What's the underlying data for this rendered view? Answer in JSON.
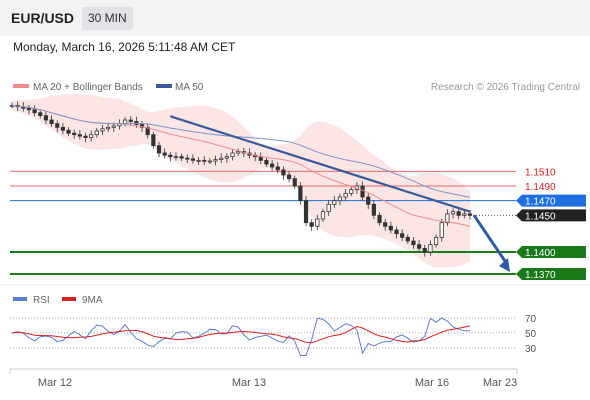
{
  "header": {
    "pair": "EUR/USD",
    "timeframe": "30 MIN",
    "date": "Monday, March 16, 2026 5:11:48 AM CET"
  },
  "legend": {
    "bollinger": "MA 20 + Bollinger Bands",
    "ma50": "MA 50",
    "rsi": "RSI",
    "rsi_ma": "9MA",
    "credit": "Research © 2026 Trading Central"
  },
  "colors": {
    "bollinger": "#f08c8c",
    "ma50": "#3b5a9a",
    "rsi": "#5b7fd0",
    "rsi_ma": "#d92020",
    "support": "#1a7a1a",
    "current": "#1f6fe0",
    "resistance": "#e86a6a",
    "candle": "#333333"
  },
  "chart_data": {
    "type": "candlestick",
    "price_range": [
      1.1355,
      1.1655
    ],
    "x_ticks": [
      "Mar 12",
      "Mar 13",
      "Mar 16",
      "Mar 23"
    ],
    "levels": [
      {
        "value": "1.1510",
        "kind": "resistance"
      },
      {
        "value": "1.1490",
        "kind": "resistance"
      },
      {
        "value": "1.1470",
        "kind": "pivot"
      },
      {
        "value": "1.1450",
        "kind": "last_price"
      },
      {
        "value": "1.1400",
        "kind": "support"
      },
      {
        "value": "1.1370",
        "kind": "support"
      }
    ],
    "closes": [
      1.16,
      1.1598,
      1.1596,
      1.1594,
      1.159,
      1.1586,
      1.158,
      1.1575,
      1.157,
      1.1566,
      1.1562,
      1.156,
      1.1558,
      1.1556,
      1.156,
      1.1565,
      1.1568,
      1.157,
      1.1572,
      1.1575,
      1.158,
      1.1578,
      1.1574,
      1.157,
      1.156,
      1.1545,
      1.1535,
      1.1532,
      1.153,
      1.153,
      1.1528,
      1.1527,
      1.1525,
      1.1525,
      1.1524,
      1.1524,
      1.1526,
      1.1528,
      1.153,
      1.1535,
      1.1537,
      1.1535,
      1.1532,
      1.153,
      1.1525,
      1.152,
      1.1516,
      1.1512,
      1.1505,
      1.15,
      1.149,
      1.147,
      1.144,
      1.1435,
      1.1445,
      1.1455,
      1.1465,
      1.147,
      1.1475,
      1.148,
      1.1485,
      1.149,
      1.1475,
      1.1465,
      1.145,
      1.144,
      1.1435,
      1.143,
      1.1425,
      1.142,
      1.1415,
      1.141,
      1.1405,
      1.14,
      1.141,
      1.142,
      1.144,
      1.1452,
      1.1455,
      1.145,
      1.1452,
      1.145
    ],
    "projection": {
      "from": 1.145,
      "to": 1.137
    },
    "rsi": {
      "levels": [
        70,
        50,
        30
      ],
      "range": [
        10,
        90
      ],
      "last": 53
    }
  }
}
